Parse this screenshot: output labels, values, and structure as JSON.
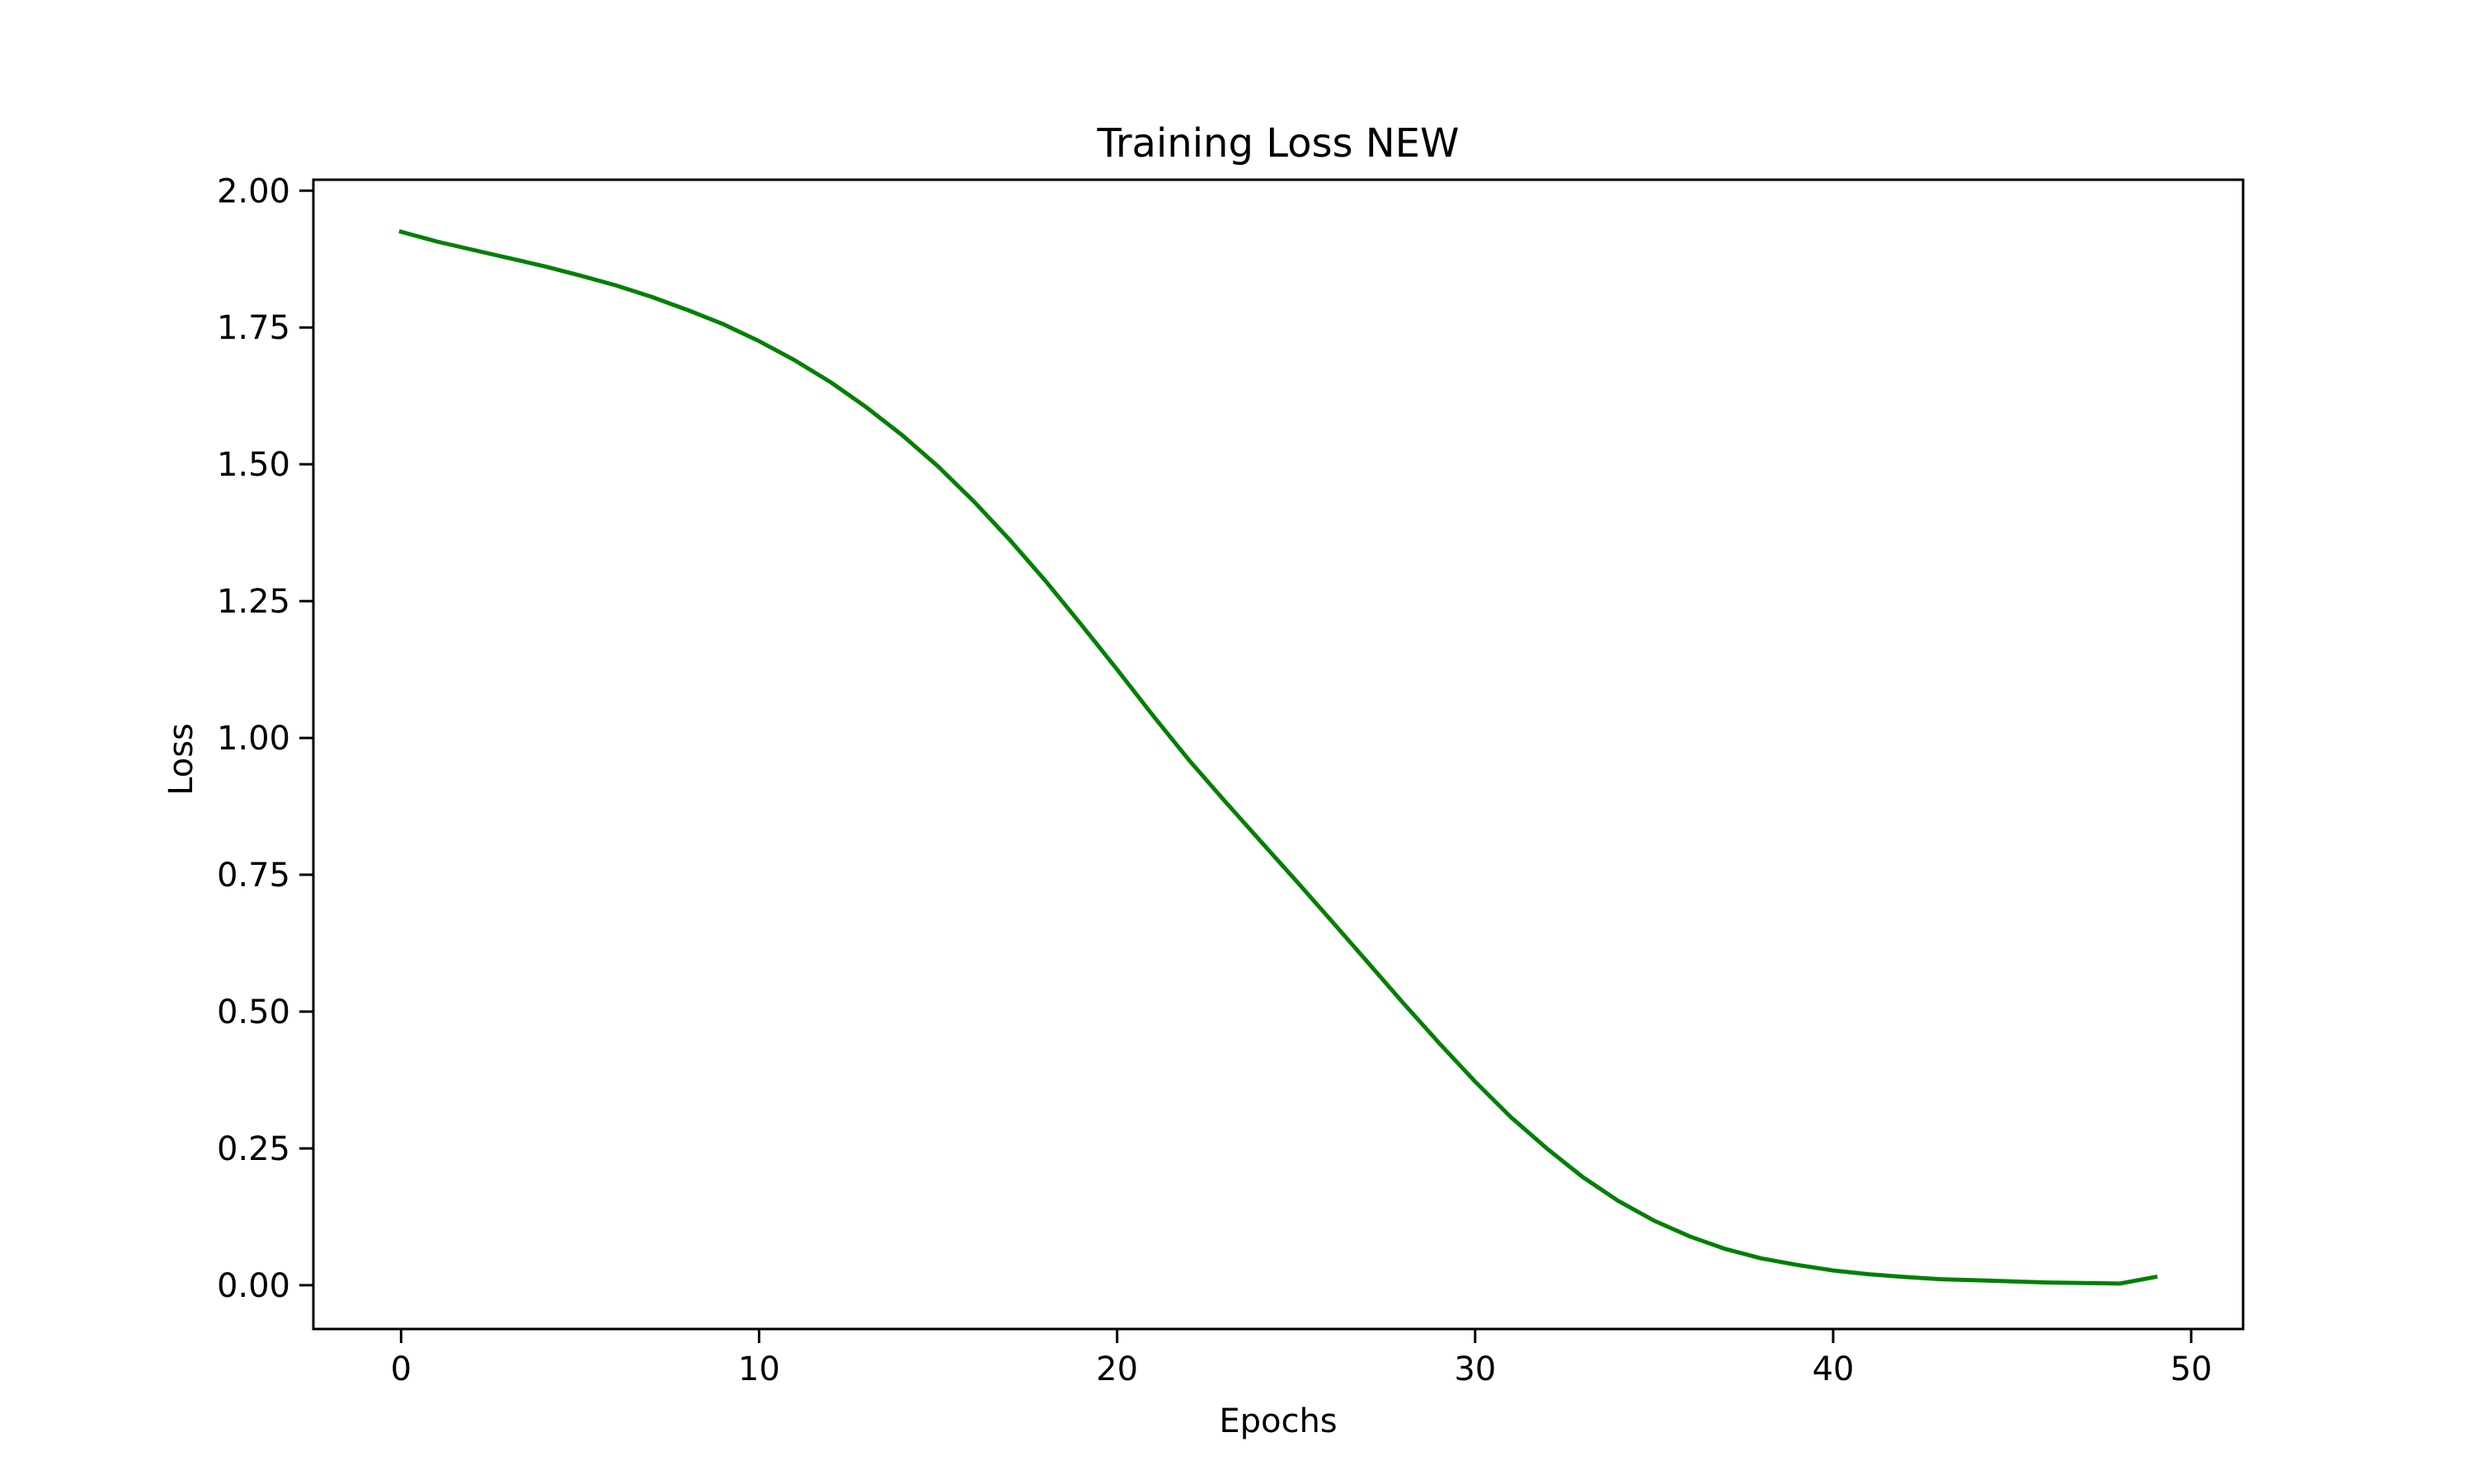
{
  "chart_data": {
    "type": "line",
    "title": "Training Loss NEW",
    "xlabel": "Epochs",
    "ylabel": "Loss",
    "xlim": [
      -2.45,
      51.45
    ],
    "ylim": [
      -0.08,
      2.02
    ],
    "xticks": [
      0,
      10,
      20,
      30,
      40,
      50
    ],
    "yticks": [
      0.0,
      0.25,
      0.5,
      0.75,
      1.0,
      1.25,
      1.5,
      1.75,
      2.0
    ],
    "ytick_labels": [
      "0.00",
      "0.25",
      "0.50",
      "0.75",
      "1.00",
      "1.25",
      "1.50",
      "1.75",
      "2.00"
    ],
    "xtick_labels": [
      "0",
      "10",
      "20",
      "30",
      "40",
      "50"
    ],
    "grid": false,
    "series": [
      {
        "color": "#008000",
        "x": [
          0,
          1,
          2,
          3,
          4,
          5,
          6,
          7,
          8,
          9,
          10,
          11,
          12,
          13,
          14,
          15,
          16,
          17,
          18,
          19,
          20,
          21,
          22,
          23,
          24,
          25,
          26,
          27,
          28,
          29,
          30,
          31,
          32,
          33,
          34,
          35,
          36,
          37,
          38,
          39,
          40,
          41,
          42,
          43,
          44,
          45,
          46,
          47,
          48,
          49
        ],
        "y": [
          1.925,
          1.907,
          1.892,
          1.877,
          1.862,
          1.845,
          1.827,
          1.806,
          1.782,
          1.756,
          1.725,
          1.69,
          1.65,
          1.604,
          1.553,
          1.496,
          1.432,
          1.362,
          1.287,
          1.207,
          1.125,
          1.041,
          0.96,
          0.885,
          0.812,
          0.739,
          0.665,
          0.59,
          0.515,
          0.442,
          0.372,
          0.307,
          0.25,
          0.198,
          0.154,
          0.118,
          0.089,
          0.066,
          0.049,
          0.037,
          0.027,
          0.02,
          0.015,
          0.011,
          0.009,
          0.007,
          0.005,
          0.004,
          0.003,
          0.015
        ]
      }
    ]
  }
}
